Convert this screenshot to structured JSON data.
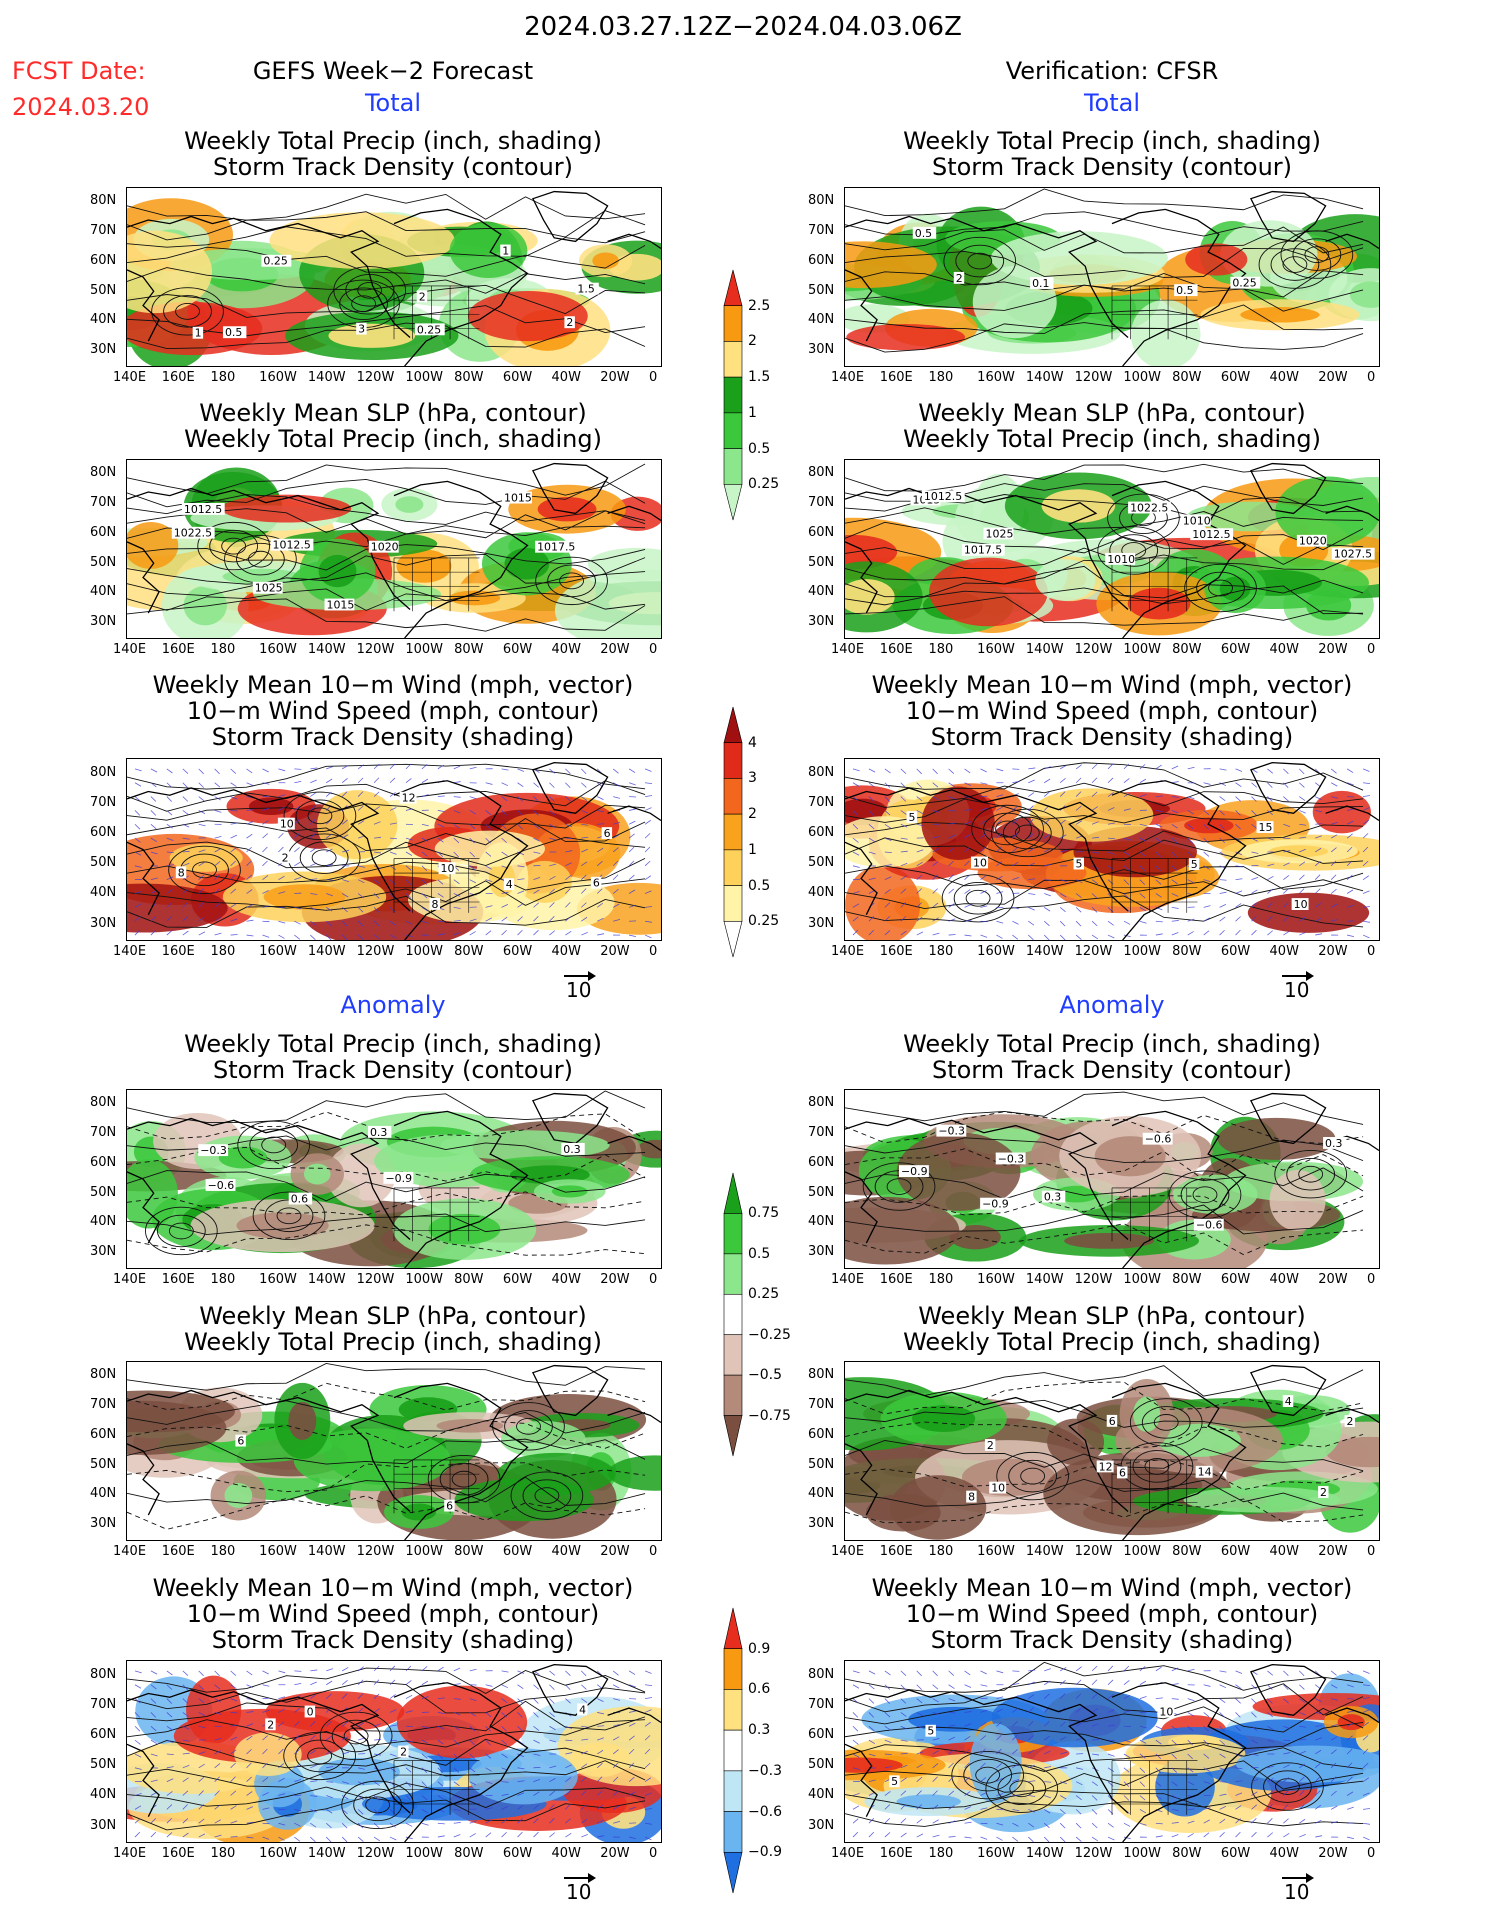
{
  "header": {
    "period": "2024.03.27.12Z−2024.04.03.06Z",
    "fcst_label": "FCST Date:",
    "fcst_date": "2024.03.20",
    "left_title": "GEFS Week−2 Forecast",
    "right_title": "Verification: CFSR"
  },
  "sections": {
    "total": "Total",
    "anomaly": "Anomaly"
  },
  "titles": {
    "precip_track": [
      "Weekly Total Precip (inch, shading)",
      "Storm Track Density (contour)"
    ],
    "slp_precip": [
      "Weekly Mean SLP (hPa, contour)",
      "Weekly Total Precip (inch, shading)"
    ],
    "wind_track": [
      "Weekly Mean 10−m Wind (mph, vector)",
      "10−m Wind Speed (mph, contour)",
      "Storm Track Density (shading)"
    ]
  },
  "axes": {
    "lon": [
      "140E",
      "160E",
      "180",
      "160W",
      "140W",
      "120W",
      "100W",
      "80W",
      "60W",
      "40W",
      "20W",
      "0"
    ],
    "lat": [
      "80N",
      "70N",
      "60N",
      "50N",
      "40N",
      "30N"
    ]
  },
  "vector_ref": "10",
  "colorbars": {
    "precip_total": {
      "labels": [
        "2.5",
        "2",
        "1.5",
        "1",
        "0.5",
        "0.25"
      ],
      "colors": [
        "#e62d1e",
        "#f79a12",
        "#ffe180",
        "#1aa01a",
        "#3cc83c",
        "#8ce68c",
        "#c8f5c8"
      ]
    },
    "track_total": {
      "labels": [
        "4",
        "3",
        "2",
        "1",
        "0.5",
        "0.25"
      ],
      "colors": [
        "#a01010",
        "#e02a1a",
        "#f2661e",
        "#f9a21e",
        "#fdd15a",
        "#fff3a8",
        "#ffffff"
      ]
    },
    "precip_anom": {
      "labels": [
        "0.75",
        "0.5",
        "0.25",
        "−0.25",
        "−0.5",
        "−0.75"
      ],
      "colors": [
        "#1aa01a",
        "#3cc83c",
        "#8ce68c",
        "#ffffff",
        "#e0c4b8",
        "#b48a7a",
        "#7a4f40"
      ]
    },
    "track_anom": {
      "labels": [
        "0.9",
        "0.6",
        "0.3",
        "−0.3",
        "−0.6",
        "−0.9"
      ],
      "colors": [
        "#e62d1e",
        "#f79a12",
        "#ffe180",
        "#ffffff",
        "#bfe6f5",
        "#6ab4f0",
        "#1f6fe0"
      ]
    }
  },
  "contour_labels": {
    "p1l": [
      "0.5",
      "0.25",
      "2",
      "3",
      "1.5",
      "0.25",
      "1",
      "1",
      "2"
    ],
    "p1r": [
      "2",
      "0.5",
      "0.5",
      "0.1",
      "0.25"
    ],
    "p2l": [
      "1025",
      "1020",
      "1022.5",
      "1015",
      "1017.5",
      "1012.5",
      "1015",
      "1012.5"
    ],
    "p2r": [
      "1025",
      "1022.5",
      "1027.5",
      "1010",
      "1020",
      "1017.5",
      "1012.5",
      "1015",
      "1010",
      "1012.5"
    ],
    "p3l": [
      "8",
      "8",
      "6",
      "12",
      "6",
      "2",
      "4",
      "10",
      "10"
    ],
    "p3r": [
      "5",
      "5",
      "10",
      "5",
      "15",
      "10"
    ],
    "p4l": [
      "−0.6",
      "−0.9",
      "−0.3",
      "0.3",
      "0.3",
      "0.6"
    ],
    "p4r": [
      "−0.3",
      "−0.6",
      "−0.9",
      "0.3",
      "0.3",
      "−0.9",
      "−0.6",
      "−0.3"
    ],
    "p5l": [
      "6",
      "6"
    ],
    "p5r": [
      "8",
      "12",
      "2",
      "6",
      "4",
      "10",
      "14",
      "2",
      "6",
      "2"
    ],
    "p6l": [
      "2",
      "2",
      "4",
      "0"
    ],
    "p6r": [
      "5",
      "10",
      "5"
    ]
  }
}
